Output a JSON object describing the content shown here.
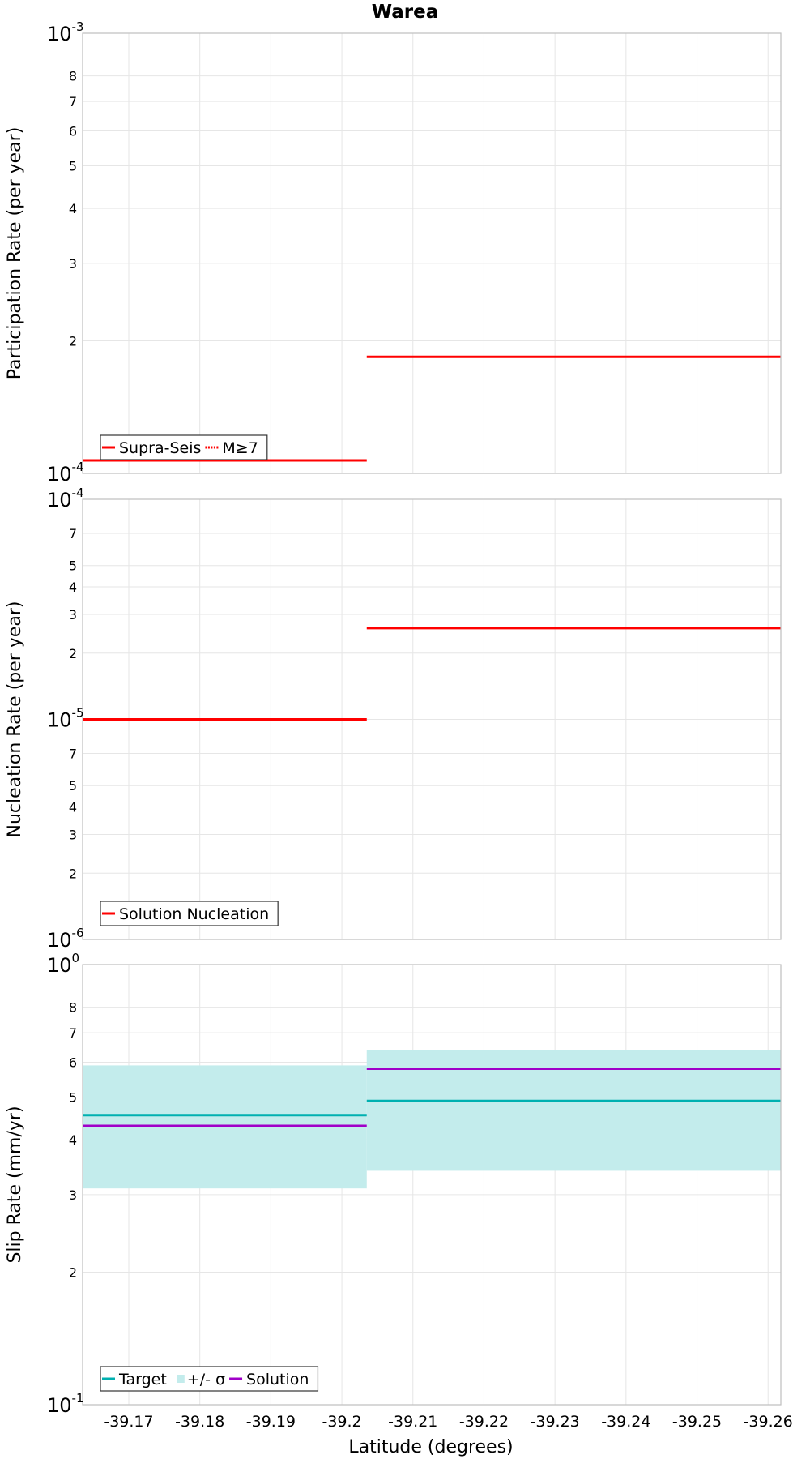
{
  "figure": {
    "title": "Warea",
    "xlabel": "Latitude (degrees)"
  },
  "colors": {
    "red": "#ff0000",
    "target": "#00b0b0",
    "band": "#c3ecec",
    "solution": "#a000c8",
    "grid": "#e6e6e6",
    "frame": "#bfbfbf"
  },
  "chart_data": [
    {
      "type": "line",
      "name": "participation",
      "ylabel": "Participation Rate (per year)",
      "yscale": "log",
      "ylim": [
        0.0001,
        0.001
      ],
      "xlim": [
        -39.1635,
        -39.2618
      ],
      "major_ticks": [
        {
          "base": "10",
          "exp": "-3",
          "value": 0.001
        },
        {
          "base": "10",
          "exp": "-4",
          "value": 0.0001
        }
      ],
      "minor_ticks": [
        {
          "label": "8",
          "value": 0.0008
        },
        {
          "label": "7",
          "value": 0.0007
        },
        {
          "label": "6",
          "value": 0.0006
        },
        {
          "label": "5",
          "value": 0.0005
        },
        {
          "label": "4",
          "value": 0.0004
        },
        {
          "label": "3",
          "value": 0.0003
        },
        {
          "label": "2",
          "value": 0.0002
        }
      ],
      "series": [
        {
          "name": "Supra-Seis",
          "style": "solid",
          "color": "#ff0000",
          "segments": [
            {
              "x0": -39.1635,
              "x1": -39.2035,
              "y": 0.000107
            },
            {
              "x0": -39.2035,
              "x1": -39.2618,
              "y": 0.000184
            }
          ]
        }
      ],
      "legend": {
        "placement": "bottom-left",
        "items": [
          {
            "label": "Supra-Seis",
            "kind": "line",
            "color": "#ff0000"
          },
          {
            "label": "M≥7",
            "kind": "dotted",
            "color": "#ff0000"
          }
        ]
      }
    },
    {
      "type": "line",
      "name": "nucleation",
      "ylabel": "Nucleation Rate (per year)",
      "yscale": "log",
      "ylim": [
        1e-06,
        0.0001
      ],
      "xlim": [
        -39.1635,
        -39.2618
      ],
      "major_ticks": [
        {
          "base": "10",
          "exp": "-4",
          "value": 0.0001
        },
        {
          "base": "10",
          "exp": "-5",
          "value": 1e-05
        },
        {
          "base": "10",
          "exp": "-6",
          "value": 1e-06
        }
      ],
      "minor_ticks": [
        {
          "label": "7",
          "value": 7e-05
        },
        {
          "label": "5",
          "value": 5e-05
        },
        {
          "label": "4",
          "value": 4e-05
        },
        {
          "label": "3",
          "value": 3e-05
        },
        {
          "label": "2",
          "value": 2e-05
        },
        {
          "label": "7",
          "value": 7e-06
        },
        {
          "label": "5",
          "value": 5e-06
        },
        {
          "label": "4",
          "value": 4e-06
        },
        {
          "label": "3",
          "value": 3e-06
        },
        {
          "label": "2",
          "value": 2e-06
        }
      ],
      "series": [
        {
          "name": "Solution Nucleation",
          "style": "solid",
          "color": "#ff0000",
          "segments": [
            {
              "x0": -39.1635,
              "x1": -39.2035,
              "y": 1e-05
            },
            {
              "x0": -39.2035,
              "x1": -39.2618,
              "y": 2.6e-05
            }
          ]
        }
      ],
      "legend": {
        "placement": "bottom-left",
        "items": [
          {
            "label": "Solution Nucleation",
            "kind": "line",
            "color": "#ff0000"
          }
        ]
      }
    },
    {
      "type": "line",
      "name": "slip",
      "ylabel": "Slip Rate (mm/yr)",
      "yscale": "log",
      "ylim": [
        0.1,
        1.0
      ],
      "xlim": [
        -39.1635,
        -39.2618
      ],
      "major_ticks": [
        {
          "base": "10",
          "exp": "0",
          "value": 1.0
        },
        {
          "base": "10",
          "exp": "-1",
          "value": 0.1
        }
      ],
      "minor_ticks": [
        {
          "label": "8",
          "value": 0.8
        },
        {
          "label": "7",
          "value": 0.7
        },
        {
          "label": "6",
          "value": 0.6
        },
        {
          "label": "5",
          "value": 0.5
        },
        {
          "label": "4",
          "value": 0.4
        },
        {
          "label": "3",
          "value": 0.3
        },
        {
          "label": "2",
          "value": 0.2
        }
      ],
      "bands": [
        {
          "name": "+/- σ",
          "color": "#c3ecec",
          "segments": [
            {
              "x0": -39.1635,
              "x1": -39.2035,
              "y0": 0.31,
              "y1": 0.59
            },
            {
              "x0": -39.2035,
              "x1": -39.2618,
              "y0": 0.34,
              "y1": 0.64
            }
          ]
        }
      ],
      "series": [
        {
          "name": "Target",
          "style": "solid",
          "color": "#00b0b0",
          "segments": [
            {
              "x0": -39.1635,
              "x1": -39.2035,
              "y": 0.455
            },
            {
              "x0": -39.2035,
              "x1": -39.2618,
              "y": 0.49
            }
          ]
        },
        {
          "name": "Solution",
          "style": "solid",
          "color": "#a000c8",
          "segments": [
            {
              "x0": -39.1635,
              "x1": -39.2035,
              "y": 0.43
            },
            {
              "x0": -39.2035,
              "x1": -39.2618,
              "y": 0.58
            }
          ]
        }
      ],
      "legend": {
        "placement": "bottom-left",
        "items": [
          {
            "label": "Target",
            "kind": "line",
            "color": "#00b0b0"
          },
          {
            "label": "+/- σ",
            "kind": "band",
            "color": "#c3ecec"
          },
          {
            "label": "Solution",
            "kind": "line",
            "color": "#a000c8"
          }
        ]
      }
    }
  ],
  "x_ticks": [
    {
      "label": "-39.17",
      "value": -39.17
    },
    {
      "label": "-39.18",
      "value": -39.18
    },
    {
      "label": "-39.19",
      "value": -39.19
    },
    {
      "label": "-39.2",
      "value": -39.2
    },
    {
      "label": "-39.21",
      "value": -39.21
    },
    {
      "label": "-39.22",
      "value": -39.22
    },
    {
      "label": "-39.23",
      "value": -39.23
    },
    {
      "label": "-39.24",
      "value": -39.24
    },
    {
      "label": "-39.25",
      "value": -39.25
    },
    {
      "label": "-39.26",
      "value": -39.26
    }
  ]
}
